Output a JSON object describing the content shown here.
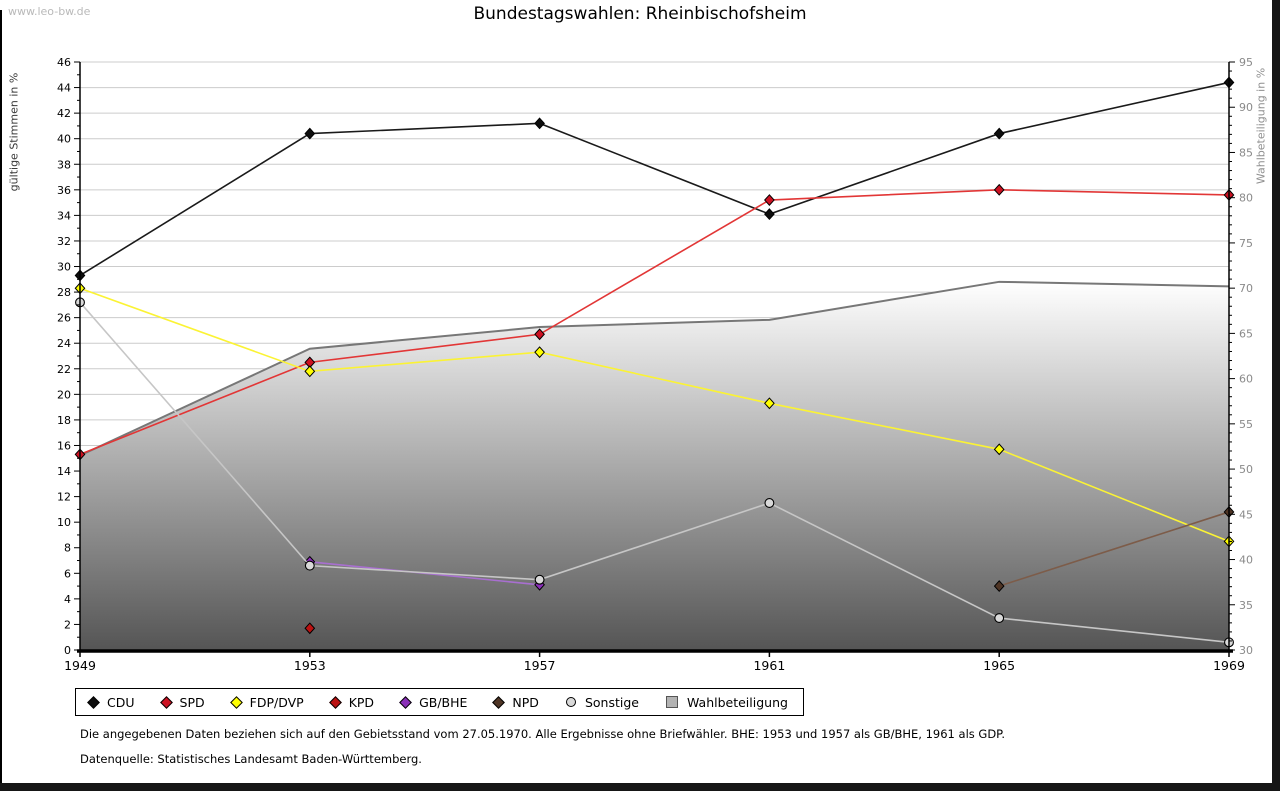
{
  "watermark": "www.leo-bw.de",
  "title": "Bundestagswahlen: Rheinbischofsheim",
  "chart_data": {
    "type": "line",
    "title": "Bundestagswahlen: Rheinbischofsheim",
    "x": [
      "1949",
      "1953",
      "1957",
      "1961",
      "1965",
      "1969"
    ],
    "left_axis": {
      "label": "gültige Stimmen in %",
      "min": 0,
      "max": 46,
      "major_step": 2,
      "minor_step": 1
    },
    "right_axis": {
      "label": "Wahlbeteiligung in %",
      "min": 30,
      "max": 95,
      "major_step": 5,
      "minor_step": 1
    },
    "grid": true,
    "legend_position": "bottom",
    "series": [
      {
        "name": "CDU",
        "axis": "left",
        "kind": "line",
        "marker": "diamond",
        "line_color": "#1a1a1a",
        "marker_color": "#0d0d0d",
        "values": [
          29.3,
          40.4,
          41.2,
          34.1,
          40.4,
          44.4
        ]
      },
      {
        "name": "SPD",
        "axis": "left",
        "kind": "line",
        "marker": "diamond",
        "line_color": "#e23636",
        "marker_color": "#cc1122",
        "values": [
          15.3,
          22.5,
          24.7,
          35.2,
          36.0,
          35.6
        ]
      },
      {
        "name": "FDP/DVP",
        "axis": "left",
        "kind": "line",
        "marker": "diamond",
        "line_color": "#fbf334",
        "marker_color": "#ffff00",
        "values": [
          28.3,
          21.8,
          23.3,
          19.3,
          15.7,
          8.5
        ]
      },
      {
        "name": "KPD",
        "axis": "left",
        "kind": "line",
        "marker": "diamond",
        "line_color": "#bb1111",
        "marker_color": "#bb1111",
        "values": [
          null,
          1.7,
          null,
          null,
          null,
          null
        ]
      },
      {
        "name": "GB/BHE",
        "axis": "left",
        "kind": "line",
        "marker": "diamond",
        "line_color": "#a86fd0",
        "marker_color": "#8a2fb8",
        "values": [
          null,
          6.9,
          5.1,
          null,
          null,
          null
        ]
      },
      {
        "name": "NPD",
        "axis": "left",
        "kind": "line",
        "marker": "diamond",
        "line_color": "#7d5c49",
        "marker_color": "#4f3525",
        "values": [
          null,
          null,
          null,
          null,
          5.0,
          10.8
        ]
      },
      {
        "name": "Sonstige",
        "axis": "left",
        "kind": "line",
        "marker": "circle",
        "line_color": "#c6c6c6",
        "marker_color": "#d9d9d9",
        "values": [
          27.2,
          6.6,
          5.5,
          11.5,
          2.5,
          0.6
        ]
      },
      {
        "name": "Wahlbeteiligung",
        "axis": "right",
        "kind": "area",
        "marker": "square",
        "line_color": "#777777",
        "marker_color": "#b3b3b3",
        "area_top": "#ffffff",
        "area_bottom": "#555555",
        "values": [
          51.5,
          63.3,
          65.7,
          66.5,
          70.7,
          70.2
        ]
      }
    ]
  },
  "footer": {
    "note": "Die angegebenen Daten beziehen sich auf den Gebietsstand vom 27.05.1970. Alle Ergebnisse ohne Briefwähler. BHE: 1953 und 1957 als GB/BHE, 1961 als GDP.",
    "source": "Datenquelle: Statistisches Landesamt Baden-Württemberg."
  }
}
